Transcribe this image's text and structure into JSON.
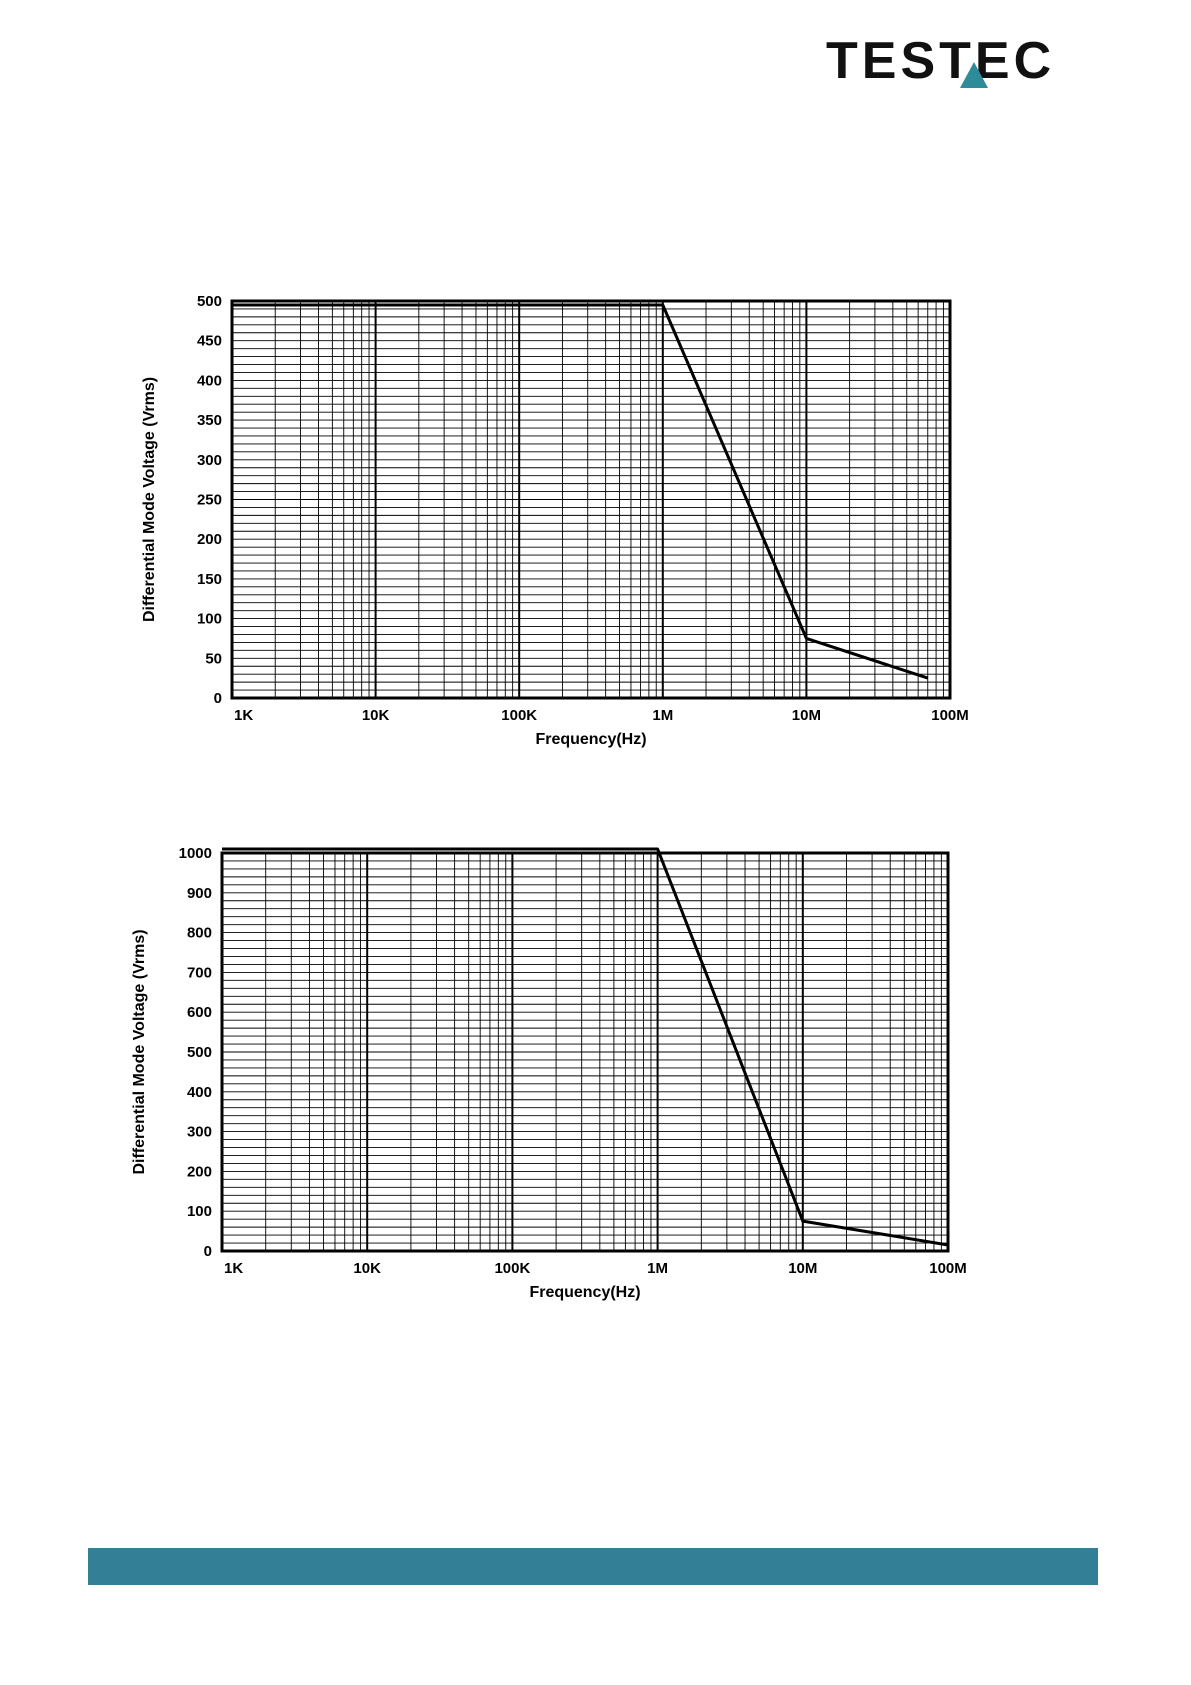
{
  "header": {
    "logo": {
      "text": "TESTEC",
      "accent_color": "#2e8b9a",
      "text_color": "#111111",
      "icon": "triangle-logo-mark"
    }
  },
  "footer": {
    "bar_color": "#337f95"
  },
  "chart_data": [
    {
      "type": "line",
      "title": "",
      "xlabel": "Frequency(Hz)",
      "ylabel": "Differential Mode Voltage (Vrms)",
      "x_scale": "log",
      "xlim": [
        1000,
        100000000
      ],
      "ylim": [
        0,
        500
      ],
      "x_ticks": [
        1000,
        10000,
        100000,
        1000000,
        10000000,
        100000000
      ],
      "x_tick_labels": [
        "1K",
        "10K",
        "100K",
        "1M",
        "10M",
        "100M"
      ],
      "y_ticks": [
        0,
        50,
        100,
        150,
        200,
        250,
        300,
        350,
        400,
        450,
        500
      ],
      "y_tick_labels": [
        "0",
        "50",
        "100",
        "150",
        "200",
        "250",
        "300",
        "350",
        "400",
        "450",
        "500"
      ],
      "y_minor_step": 10,
      "grid": true,
      "series": [
        {
          "x": [
            1000,
            1000000,
            10000000,
            70000000
          ],
          "y": [
            495,
            495,
            75,
            25
          ]
        }
      ]
    },
    {
      "type": "line",
      "title": "",
      "xlabel": "Frequency(Hz)",
      "ylabel": "Differential Mode Voltage (Vrms)",
      "x_scale": "log",
      "xlim": [
        1000,
        100000000
      ],
      "ylim": [
        0,
        1000
      ],
      "x_ticks": [
        1000,
        10000,
        100000,
        1000000,
        10000000,
        100000000
      ],
      "x_tick_labels": [
        "1K",
        "10K",
        "100K",
        "1M",
        "10M",
        "100M"
      ],
      "y_ticks": [
        0,
        100,
        200,
        300,
        400,
        500,
        600,
        700,
        800,
        900,
        1000
      ],
      "y_tick_labels": [
        "0",
        "100",
        "200",
        "300",
        "400",
        "500",
        "600",
        "700",
        "800",
        "900",
        "1000"
      ],
      "y_minor_step": 20,
      "grid": true,
      "series": [
        {
          "x": [
            1000,
            1000000,
            10000000,
            100000000
          ],
          "y": [
            1010,
            1010,
            75,
            15
          ]
        }
      ]
    }
  ]
}
